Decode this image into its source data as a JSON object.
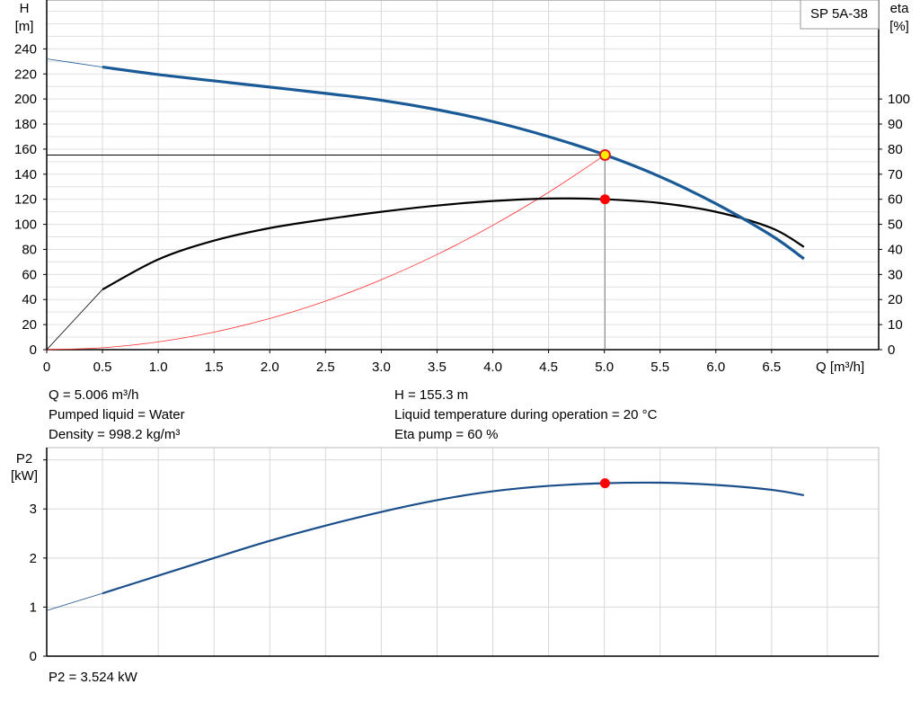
{
  "chart_data": [
    {
      "type": "line",
      "legend_box": "SP 5A-38",
      "xlabel": "Q [m³/h]",
      "ylabel_left": [
        "H",
        "[m]"
      ],
      "ylabel_right": [
        "eta",
        "[%]"
      ],
      "xlim": [
        0,
        7.46
      ],
      "ylim_left": [
        0,
        279
      ],
      "ylim_right": [
        0,
        139.5
      ],
      "grid": true,
      "x_ticks": [
        "0",
        "0.5",
        "1.0",
        "1.5",
        "2.0",
        "2.5",
        "3.0",
        "3.5",
        "4.0",
        "4.5",
        "5.0",
        "5.5",
        "6.0",
        "6.5"
      ],
      "y_ticks_left": [
        "0",
        "20",
        "40",
        "60",
        "80",
        "100",
        "120",
        "140",
        "160",
        "180",
        "200",
        "220",
        "240"
      ],
      "y_ticks_right": [
        "0",
        "10",
        "20",
        "30",
        "40",
        "50",
        "60",
        "70",
        "80",
        "90",
        "100"
      ],
      "x": [
        0,
        0.5,
        1,
        1.5,
        2,
        2.5,
        3,
        3.5,
        4,
        4.5,
        5,
        5.5,
        6,
        6.5,
        6.79
      ],
      "series": [
        {
          "id": "head",
          "axis": "left",
          "color": "#1a5a96",
          "values": [
            232,
            225.5,
            219.5,
            214.5,
            209.5,
            204.5,
            199,
            191.5,
            182,
            170,
            155.6,
            138,
            116.5,
            91,
            72.5
          ]
        },
        {
          "id": "eta",
          "axis": "right",
          "color": "#000000",
          "values": [
            0,
            24,
            36,
            43.5,
            48.5,
            52,
            55,
            57.5,
            59.3,
            60.3,
            60,
            58.5,
            55,
            48.5,
            41
          ]
        },
        {
          "id": "system",
          "axis": "left",
          "color": "#ff3030",
          "x": [
            0,
            0.5,
            1,
            1.5,
            2,
            2.5,
            3,
            3.5,
            4,
            4.5,
            5.006
          ],
          "values": [
            0,
            1.55,
            6.2,
            14,
            24.8,
            38.7,
            55.8,
            75.9,
            99.2,
            125.5,
            155.3
          ]
        }
      ],
      "operating_point": {
        "Q": 5.006,
        "H": 155.3,
        "eta": 60
      }
    },
    {
      "type": "line",
      "ylabel": [
        "P2",
        "[kW]"
      ],
      "xlim": [
        0,
        7.46
      ],
      "ylim": [
        0,
        4.25
      ],
      "grid": true,
      "y_ticks": [
        "0",
        "1",
        "2",
        "3"
      ],
      "x": [
        0,
        0.5,
        1,
        1.5,
        2,
        2.5,
        3,
        3.5,
        4,
        4.5,
        5,
        5.5,
        6,
        6.5,
        6.79
      ],
      "series": [
        {
          "id": "p2",
          "color": "#1a4e8a",
          "values": [
            0.93,
            1.28,
            1.64,
            2.0,
            2.35,
            2.66,
            2.94,
            3.18,
            3.36,
            3.47,
            3.524,
            3.535,
            3.49,
            3.39,
            3.28
          ]
        }
      ],
      "operating_point": {
        "Q": 5.006,
        "P2": 3.524
      }
    }
  ],
  "info": {
    "q": "Q = 5.006 m³/h",
    "liquid": "Pumped liquid = Water",
    "density": "Density = 998.2 kg/m³",
    "h": "H = 155.3 m",
    "temp": "Liquid temperature during operation = 20 °C",
    "eta": "Eta pump = 60 %",
    "p2": "P2 = 3.524 kW"
  }
}
